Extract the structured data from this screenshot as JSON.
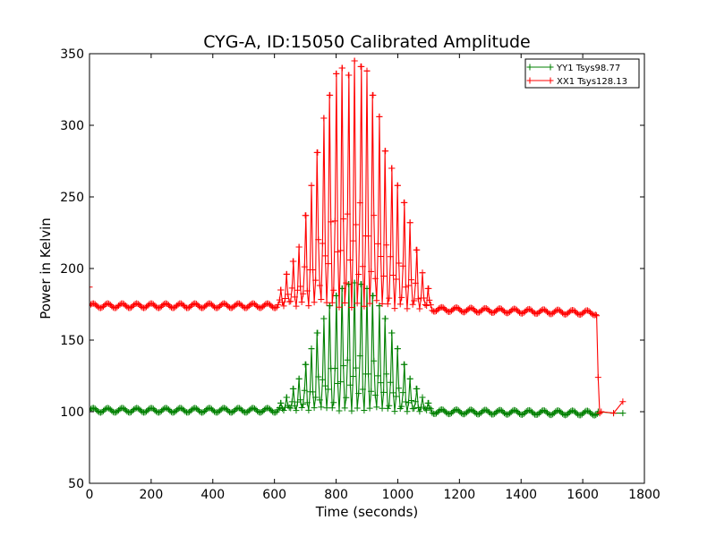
{
  "chart_data": {
    "type": "line",
    "title": "CYG-A, ID:15050 Calibrated Amplitude",
    "xlabel": "Time (seconds)",
    "ylabel": "Power in Kelvin",
    "xlim": [
      0,
      1800
    ],
    "ylim": [
      50,
      350
    ],
    "xticks": [
      0,
      200,
      400,
      600,
      800,
      1000,
      1200,
      1400,
      1600,
      1800
    ],
    "yticks": [
      50,
      100,
      150,
      200,
      250,
      300,
      350
    ],
    "grid": false,
    "legend_position": "top-right",
    "series": [
      {
        "name": "YY1 Tsys98.77",
        "color": "#008000",
        "marker": "+",
        "baseline_start": 101,
        "baseline_end": 99,
        "spike_peaks": [
          {
            "x": 620,
            "y": 106
          },
          {
            "x": 640,
            "y": 110
          },
          {
            "x": 660,
            "y": 116
          },
          {
            "x": 680,
            "y": 123
          },
          {
            "x": 700,
            "y": 133
          },
          {
            "x": 720,
            "y": 144
          },
          {
            "x": 740,
            "y": 155
          },
          {
            "x": 760,
            "y": 165
          },
          {
            "x": 780,
            "y": 174
          },
          {
            "x": 800,
            "y": 181
          },
          {
            "x": 820,
            "y": 186
          },
          {
            "x": 840,
            "y": 189
          },
          {
            "x": 860,
            "y": 190
          },
          {
            "x": 880,
            "y": 189
          },
          {
            "x": 900,
            "y": 186
          },
          {
            "x": 920,
            "y": 181
          },
          {
            "x": 940,
            "y": 174
          },
          {
            "x": 960,
            "y": 165
          },
          {
            "x": 980,
            "y": 155
          },
          {
            "x": 1000,
            "y": 144
          },
          {
            "x": 1020,
            "y": 133
          },
          {
            "x": 1040,
            "y": 123
          },
          {
            "x": 1060,
            "y": 116
          },
          {
            "x": 1080,
            "y": 110
          },
          {
            "x": 1100,
            "y": 106
          }
        ],
        "tail": [
          {
            "x": 1650,
            "y": 100
          },
          {
            "x": 1700,
            "y": 99
          },
          {
            "x": 1730,
            "y": 99
          }
        ]
      },
      {
        "name": "XX1 Tsys128.13",
        "color": "#ff0000",
        "marker": "+",
        "start_value": 187,
        "baseline_start": 174,
        "baseline_end": 169,
        "spike_peaks": [
          {
            "x": 620,
            "y": 185
          },
          {
            "x": 640,
            "y": 196
          },
          {
            "x": 660,
            "y": 205
          },
          {
            "x": 680,
            "y": 215
          },
          {
            "x": 700,
            "y": 237
          },
          {
            "x": 720,
            "y": 258
          },
          {
            "x": 740,
            "y": 281
          },
          {
            "x": 760,
            "y": 305
          },
          {
            "x": 780,
            "y": 321
          },
          {
            "x": 800,
            "y": 336
          },
          {
            "x": 820,
            "y": 340
          },
          {
            "x": 840,
            "y": 335
          },
          {
            "x": 860,
            "y": 345
          },
          {
            "x": 880,
            "y": 341
          },
          {
            "x": 900,
            "y": 338
          },
          {
            "x": 920,
            "y": 321
          },
          {
            "x": 940,
            "y": 306
          },
          {
            "x": 960,
            "y": 282
          },
          {
            "x": 980,
            "y": 270
          },
          {
            "x": 1000,
            "y": 258
          },
          {
            "x": 1020,
            "y": 246
          },
          {
            "x": 1040,
            "y": 232
          },
          {
            "x": 1060,
            "y": 213
          },
          {
            "x": 1080,
            "y": 197
          },
          {
            "x": 1100,
            "y": 186
          }
        ],
        "drop": [
          {
            "x": 1645,
            "y": 167
          },
          {
            "x": 1650,
            "y": 124
          },
          {
            "x": 1655,
            "y": 99
          }
        ],
        "tail": [
          {
            "x": 1660,
            "y": 100
          },
          {
            "x": 1700,
            "y": 99
          },
          {
            "x": 1730,
            "y": 107
          }
        ]
      }
    ]
  }
}
